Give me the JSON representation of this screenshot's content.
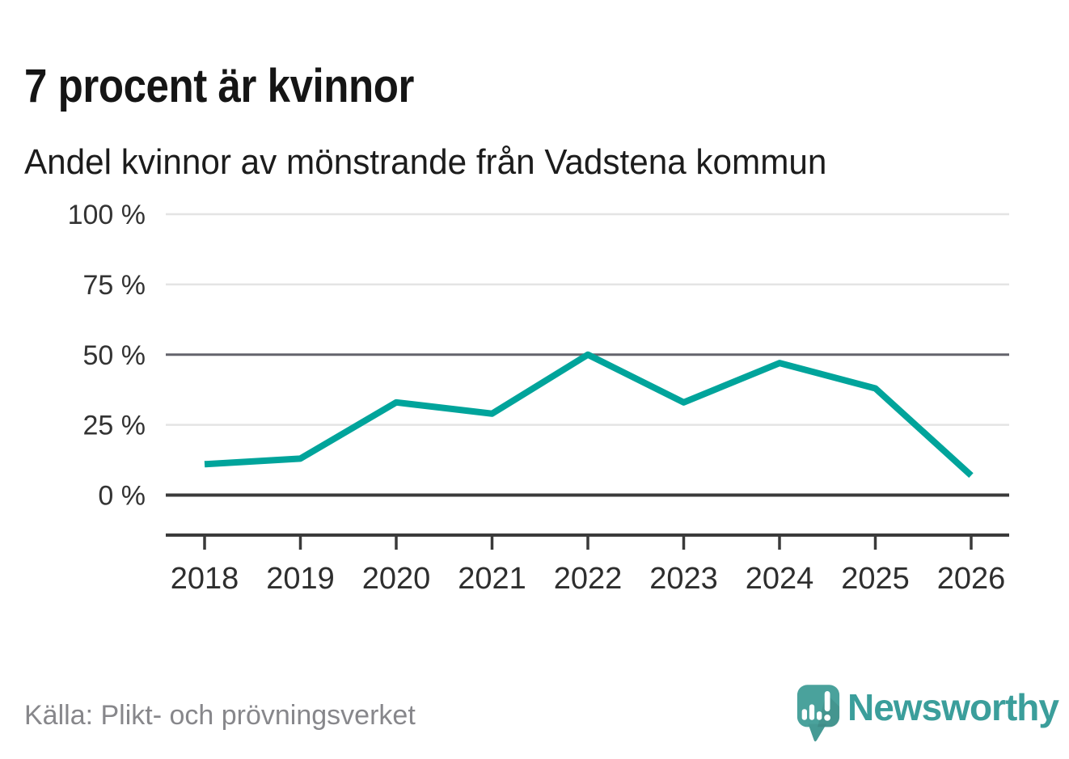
{
  "chart_data": {
    "type": "line",
    "title": "7 procent är kvinnor",
    "subtitle": "Andel kvinnor av mönstrande från Vadstena kommun",
    "source": "Källa: Plikt- och prövningsverket",
    "categories": [
      "2018",
      "2019",
      "2020",
      "2021",
      "2022",
      "2023",
      "2024",
      "2025",
      "2026"
    ],
    "values": [
      11,
      13,
      33,
      29,
      50,
      33,
      47,
      38,
      7
    ],
    "series_name": "Andel kvinnor av mönstrande",
    "xlabel": "",
    "ylabel": "",
    "ylim": [
      0,
      100
    ],
    "grid": true,
    "legend": false,
    "y_ticks": [
      {
        "value": 100,
        "label": "100 %",
        "weight": "light"
      },
      {
        "value": 75,
        "label": "75 %",
        "weight": "light"
      },
      {
        "value": 50,
        "label": "50 %",
        "weight": "medium"
      },
      {
        "value": 25,
        "label": "25 %",
        "weight": "light"
      },
      {
        "value": 0,
        "label": "0 %",
        "weight": "strong"
      }
    ]
  },
  "footer": {
    "logo_text": "Newsworthy"
  },
  "colors": {
    "line": "#00a49b",
    "grid_light": "#e4e4e4",
    "grid_medium": "#64646b",
    "axis": "#3a3a3a",
    "title_text": "#151515",
    "muted_text": "#87878b",
    "logo_teal": "#3b9e9b",
    "logo_bubble": "#4aa29c"
  }
}
